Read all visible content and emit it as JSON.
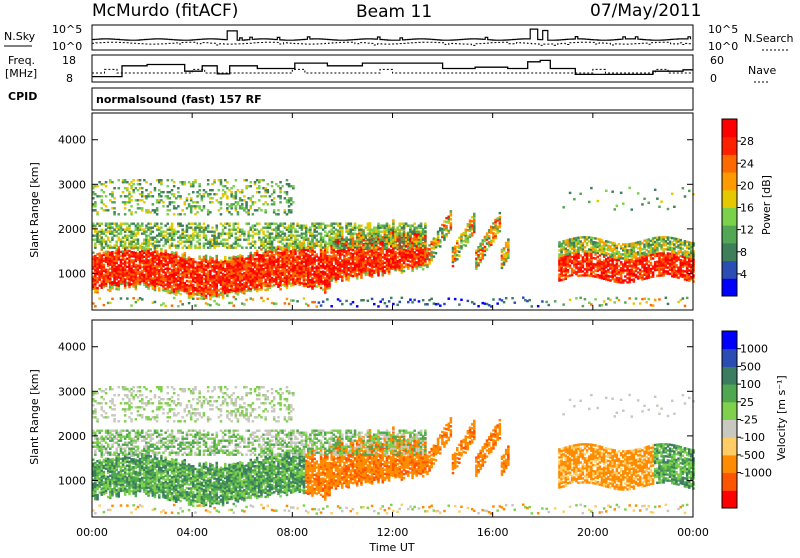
{
  "header": {
    "station": "McMurdo (fitACF)",
    "beam": "Beam 11",
    "date": "07/May/2011"
  },
  "strip_labels": {
    "nsky": "N.Sky",
    "nsearch": "N.Search",
    "freq_line1": "Freq.",
    "freq_line2": "[MHz]",
    "nave": "Nave",
    "cpid": "CPID",
    "cpid_value": "normalsound (fast) 157 RF"
  },
  "noise_ticks": [
    "10^5",
    "10^0"
  ],
  "freq_ticks": [
    "18",
    "8"
  ],
  "nave_ticks": [
    "60",
    "0"
  ],
  "colors": {
    "power_scale": [
      "#0000ff",
      "#2a4db4",
      "#3e7e5a",
      "#53a653",
      "#7bd04c",
      "#e6c800",
      "#ff9a00",
      "#ff6a00",
      "#ff2000",
      "#ff0000"
    ],
    "velocity_scale": [
      "#ff0000",
      "#ff5400",
      "#ff8c00",
      "#ffcc66",
      "#c8c8c0",
      "#7fd04c",
      "#4fa84f",
      "#3c7d62",
      "#2a4db4",
      "#0000ff"
    ]
  },
  "chart_data": [
    {
      "type": "heatmap",
      "panel": "power",
      "ylabel": "Slant Range [km]",
      "ylim": [
        180,
        4600
      ],
      "xlim_hours": [
        0,
        24
      ],
      "yticks": [
        "4000",
        "3000",
        "2000",
        "1000"
      ],
      "colorbar_label": "Power [dB]",
      "colorbar_ticks": [
        "28",
        "24",
        "20",
        "16",
        "12",
        "8",
        "4"
      ],
      "colorbar_range": [
        0,
        32
      ]
    },
    {
      "type": "heatmap",
      "panel": "velocity",
      "ylabel": "Slant Range [km]",
      "ylim": [
        180,
        4600
      ],
      "xlim_hours": [
        0,
        24
      ],
      "yticks": [
        "4000",
        "3000",
        "2000",
        "1000"
      ],
      "colorbar_label": "Velocity [m s⁻¹]",
      "colorbar_ticks": [
        "1000",
        "500",
        "100",
        "25",
        "-25",
        "-100",
        "-500",
        "-1000"
      ]
    }
  ],
  "xaxis": {
    "ticks": [
      "00:00",
      "04:00",
      "08:00",
      "12:00",
      "16:00",
      "20:00",
      "00:00"
    ],
    "label": "Time UT"
  }
}
